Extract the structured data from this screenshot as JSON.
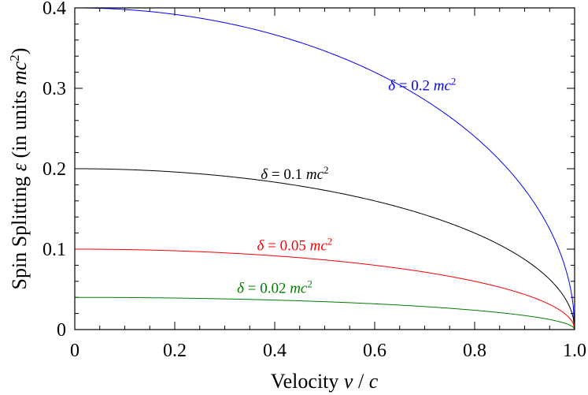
{
  "chart_data": {
    "type": "line",
    "title": "",
    "xlabel": {
      "main": "Velocity ",
      "var1": "v",
      "sep": " / ",
      "var2": "c"
    },
    "ylabel": {
      "main": "Spin Splitting ",
      "var": "ε",
      "paren": " (in units ",
      "unit": "mc",
      "sup": "2",
      "close": ")"
    },
    "xlim": [
      0,
      1.0
    ],
    "ylim": [
      0,
      0.4
    ],
    "x_ticks": [
      0,
      0.2,
      0.4,
      0.6,
      0.8,
      1.0
    ],
    "x_tick_labels": [
      "0",
      "0.2",
      "0.4",
      "0.6",
      "0.8",
      "1.0"
    ],
    "y_ticks": [
      0,
      0.1,
      0.2,
      0.3,
      0.4
    ],
    "y_tick_labels": [
      "0",
      "0.1",
      "0.2",
      "0.3",
      "0.4"
    ],
    "formula": "epsilon = 2 * delta * sqrt(1 - (v/c)^2)",
    "series": [
      {
        "name": "delta = 0.2 mc^2",
        "delta": 0.2,
        "color": "#0000ff",
        "label": {
          "sym": "δ",
          "eq": " = 0.2 ",
          "unit": "mc",
          "sup": "2"
        }
      },
      {
        "name": "delta = 0.1 mc^2",
        "delta": 0.1,
        "color": "#000000",
        "label": {
          "sym": "δ",
          "eq": " = 0.1 ",
          "unit": "mc",
          "sup": "2"
        }
      },
      {
        "name": "delta = 0.05 mc^2",
        "delta": 0.05,
        "color": "#ff0000",
        "label": {
          "sym": "δ",
          "eq": " = 0.05 ",
          "unit": "mc",
          "sup": "2"
        }
      },
      {
        "name": "delta = 0.02 mc^2",
        "delta": 0.02,
        "color": "#008000",
        "label": {
          "sym": "δ",
          "eq": " = 0.02 ",
          "unit": "mc",
          "sup": "2"
        }
      }
    ]
  }
}
